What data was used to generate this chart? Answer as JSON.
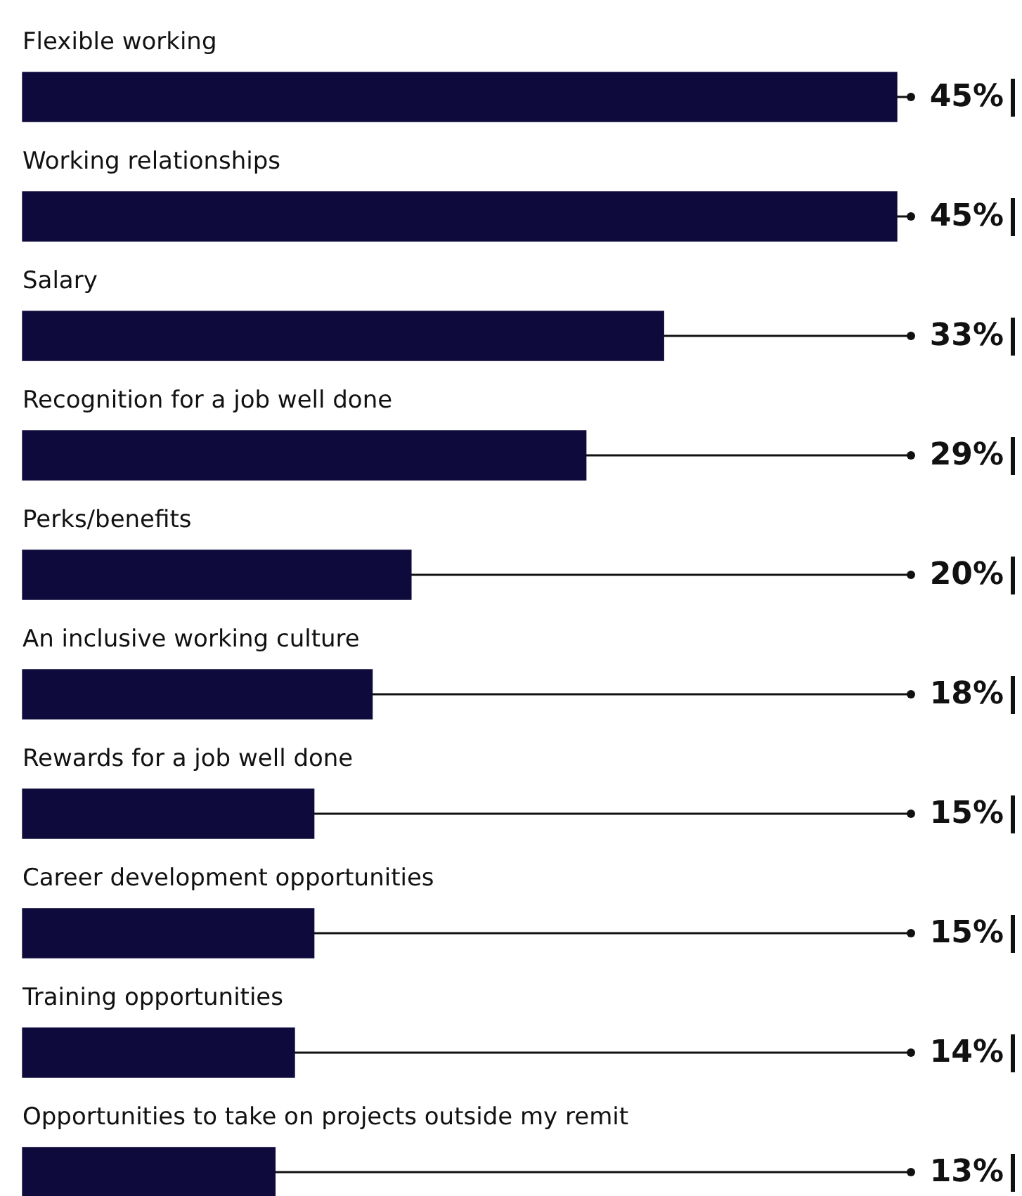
{
  "chart_data": {
    "type": "bar",
    "orientation": "horizontal",
    "tick_labels": false,
    "legend": false,
    "categories": [
      "Flexible working",
      "Working relationships",
      "Salary",
      "Recognition for a job well done",
      "Perks/benefits",
      "An inclusive working culture",
      "Rewards for a job well done",
      "Career development opportunities",
      "Training opportunities",
      "Opportunities to take on projects outside my remit"
    ],
    "values": [
      45,
      45,
      33,
      29,
      20,
      18,
      15,
      15,
      14,
      13
    ],
    "value_labels": [
      "45%",
      "45%",
      "33%",
      "29%",
      "20%",
      "18%",
      "15%",
      "15%",
      "14%",
      "13%"
    ],
    "color": "#0e0a3c"
  }
}
